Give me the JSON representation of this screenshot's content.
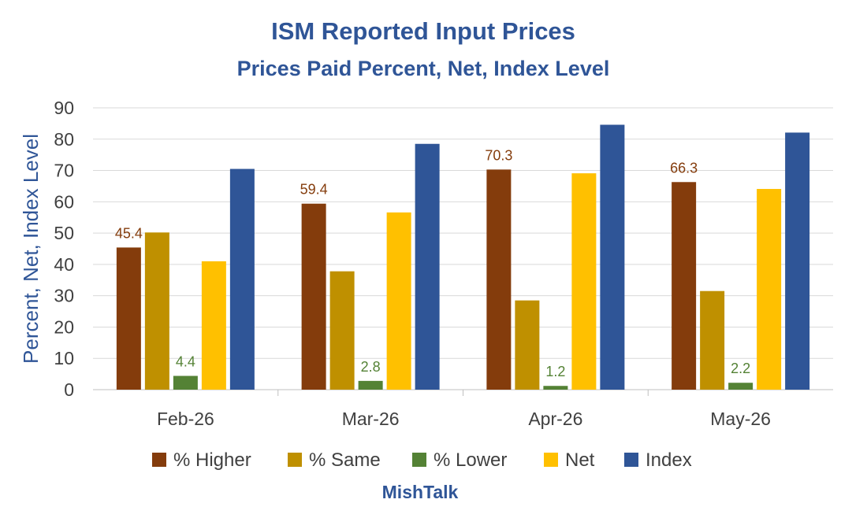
{
  "colors": {
    "higher": "#843c0c",
    "same": "#bf9000",
    "lower": "#548235",
    "net": "#ffc000",
    "index": "#2f5597",
    "title": "#2f5597",
    "grid": "#d9d9d9"
  },
  "footer": "MishTalk",
  "chart_data": {
    "type": "bar",
    "title": "ISM Reported Input Prices",
    "subtitle": "Prices Paid Percent, Net, Index Level",
    "ylabel": "Percent, Net, Index Level",
    "xlabel": "",
    "ylim": [
      0,
      90
    ],
    "yticks": [
      "0",
      "10",
      "20",
      "30",
      "40",
      "50",
      "60",
      "70",
      "80",
      "90"
    ],
    "grid": true,
    "legend_position": "bottom",
    "categories": [
      "Feb-26",
      "Mar-26",
      "Apr-26",
      "May-26"
    ],
    "series": [
      {
        "name": "% Higher",
        "color": "#843c0c",
        "values": [
          45.4,
          59.4,
          70.3,
          66.3
        ],
        "data_labels": [
          "45.4",
          "59.4",
          "70.3",
          "66.3"
        ],
        "label_color": "#843c0c"
      },
      {
        "name": "% Same",
        "color": "#bf9000",
        "values": [
          50.2,
          37.8,
          28.5,
          31.5
        ]
      },
      {
        "name": "% Lower",
        "color": "#548235",
        "values": [
          4.4,
          2.8,
          1.2,
          2.2
        ],
        "data_labels": [
          "4.4",
          "2.8",
          "1.2",
          "2.2"
        ],
        "label_color": "#548235"
      },
      {
        "name": "Net",
        "color": "#ffc000",
        "values": [
          41.0,
          56.6,
          69.1,
          64.1
        ]
      },
      {
        "name": "Index",
        "color": "#2f5597",
        "values": [
          70.5,
          78.5,
          84.6,
          82.1
        ]
      }
    ]
  }
}
